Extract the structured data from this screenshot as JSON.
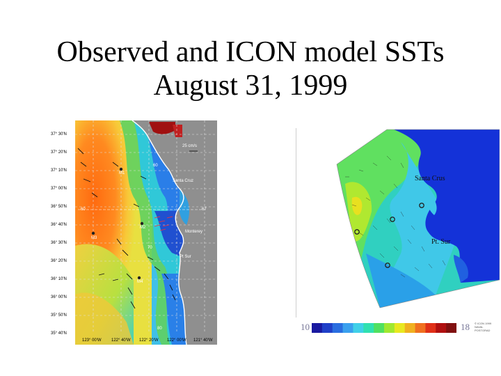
{
  "title": {
    "line1": "Observed and ICON model SSTs",
    "line2": "August 31, 1999"
  },
  "observed_panel": {
    "latitudes": [
      "37° 30'N",
      "37° 20'N",
      "37° 10'N",
      "37° 00'N",
      "36° 50'N",
      "36° 40'N",
      "36° 30'N",
      "36° 20'N",
      "36° 10'N",
      "36° 00'N",
      "35° 50'N",
      "35° 40'N"
    ],
    "longitudes": [
      "123° 00'W",
      "122° 40'W",
      "122° 20'W",
      "122° 00'W",
      "121° 40'W"
    ],
    "scale_label": "25 cm/s",
    "places": {
      "santa_cruz": "Santa Cruz",
      "monterey": "Monterey",
      "pt_sur": "Pt Sur"
    },
    "moorings": {
      "m1": "M1",
      "m2": "M2",
      "m3": "M3",
      "m4": "M4"
    },
    "line_labels": {
      "l60a": "60",
      "l60b": "60",
      "l67": "67",
      "l70": "70",
      "l80": "80"
    }
  },
  "model_panel": {
    "places": {
      "santa_crus": "Santa Crus",
      "pt_sur": "Pt. Sur"
    },
    "colorbar": {
      "min_label": "10",
      "max_label": "18",
      "colors": [
        "#1a1aa0",
        "#2040c8",
        "#2a6ee0",
        "#3aa0ee",
        "#40d0e8",
        "#30e0b0",
        "#50e060",
        "#a0e830",
        "#e8e820",
        "#f0b020",
        "#f07020",
        "#e03018",
        "#b01010",
        "#801010"
      ]
    },
    "credit": "© ICON 1999 NAVAL POSTGRAD"
  },
  "colors": {
    "land": "#8f8f8f",
    "warm": "#ff7a1a",
    "cool": "#2a6ee0",
    "model_coast": "#1432d8"
  }
}
